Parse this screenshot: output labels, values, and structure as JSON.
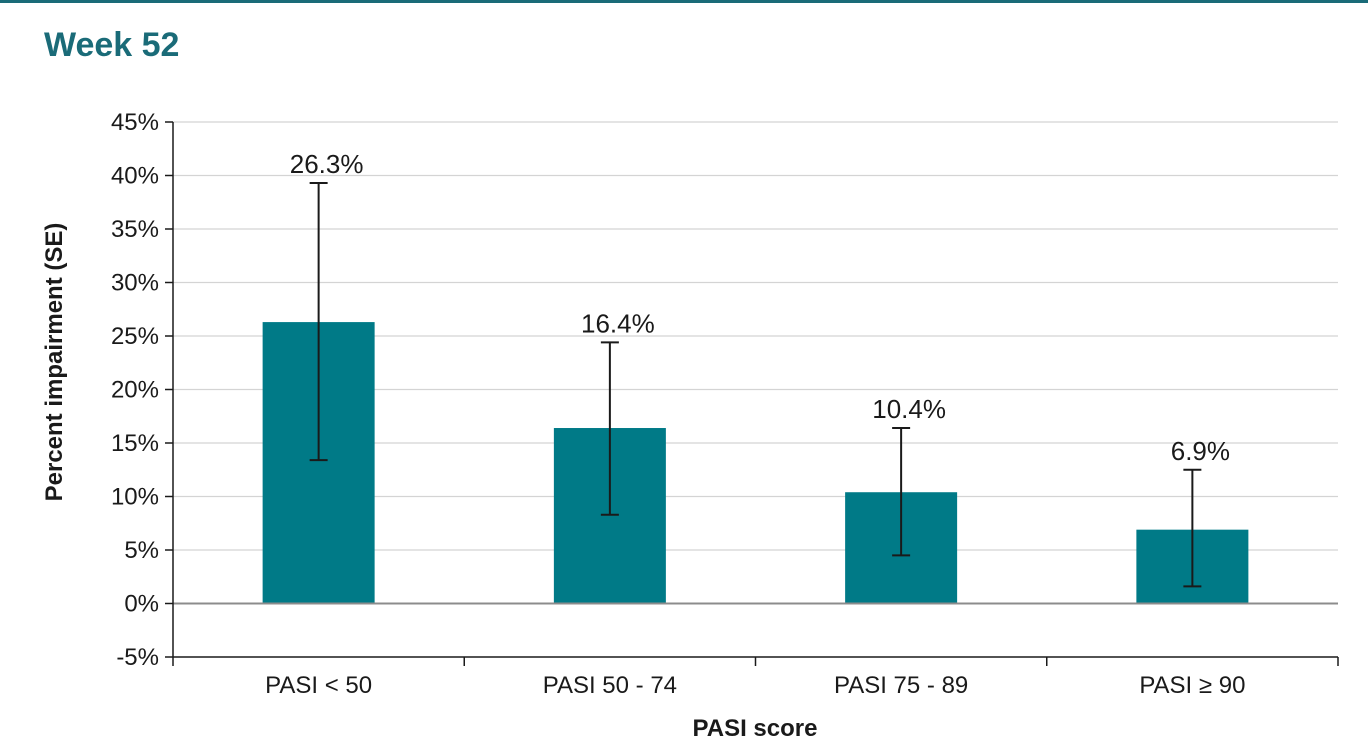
{
  "panel": {
    "title": "Week 52",
    "title_color": "#1a6b78",
    "rule_color": "#1a6b78"
  },
  "chart_data": {
    "type": "bar",
    "title": "Week 52",
    "xlabel": "PASI score",
    "ylabel": "Percent impairment (SE)",
    "categories": [
      "PASI < 50",
      "PASI 50 - 74",
      "PASI 75 - 89",
      "PASI ≥ 90"
    ],
    "values": [
      26.3,
      16.4,
      10.4,
      6.9
    ],
    "value_labels": [
      "26.3%",
      "16.4%",
      "10.4%",
      "6.9%"
    ],
    "error_upper": [
      39.3,
      24.4,
      16.4,
      12.5
    ],
    "error_lower": [
      13.4,
      8.3,
      4.5,
      1.6
    ],
    "ylim": [
      -5,
      45
    ],
    "yticks": [
      -5,
      0,
      5,
      10,
      15,
      20,
      25,
      30,
      35,
      40,
      45
    ],
    "ytick_labels": [
      "-5%",
      "0%",
      "5%",
      "10%",
      "15%",
      "20%",
      "25%",
      "30%",
      "35%",
      "40%",
      "45%"
    ],
    "grid": true,
    "legend": "none",
    "bar_color": "#007a87"
  }
}
